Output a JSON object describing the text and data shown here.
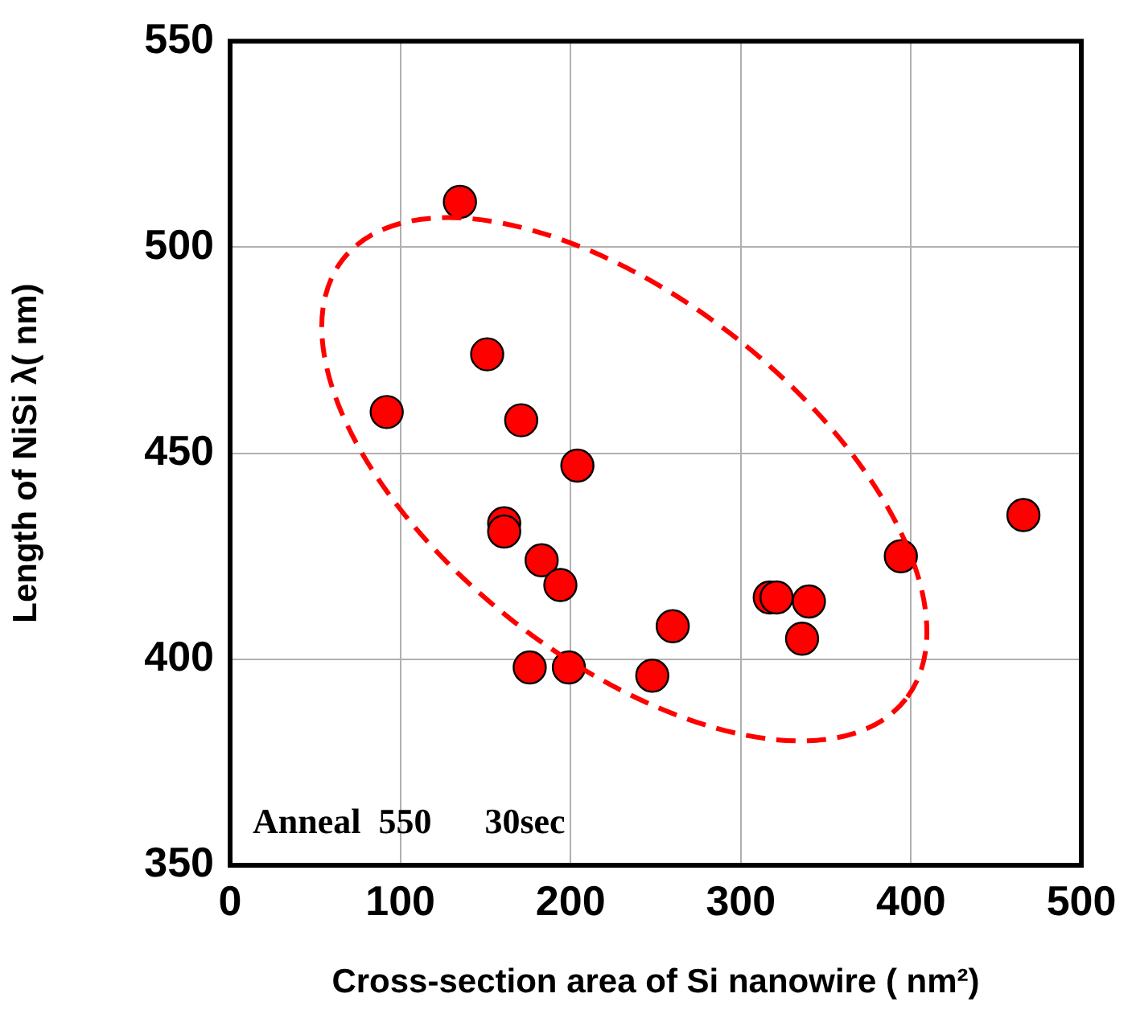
{
  "chart_data": {
    "type": "scatter",
    "xlabel": "Cross-section area of Si nanowire ( nm²)",
    "ylabel": "Length of NiSi λ( nm)",
    "xlim": [
      0,
      500
    ],
    "xticks": [
      0,
      100,
      200,
      300,
      400,
      500
    ],
    "ylim": [
      350,
      550
    ],
    "yticks": [
      350,
      400,
      450,
      500,
      550
    ],
    "grid": true,
    "marker": "circle",
    "series": [
      {
        "color": "#ff0000",
        "x": [
          135,
          151,
          92,
          171,
          204,
          161,
          161,
          183,
          194,
          176,
          199,
          248,
          260,
          317,
          321,
          340,
          336,
          394,
          466
        ],
        "values": [
          511,
          474,
          460,
          458,
          447,
          433,
          431,
          424,
          418,
          398,
          398,
          396,
          408,
          415,
          415,
          414,
          405,
          425,
          435
        ]
      }
    ],
    "annotations": [
      "Anneal  550      30sec"
    ]
  }
}
